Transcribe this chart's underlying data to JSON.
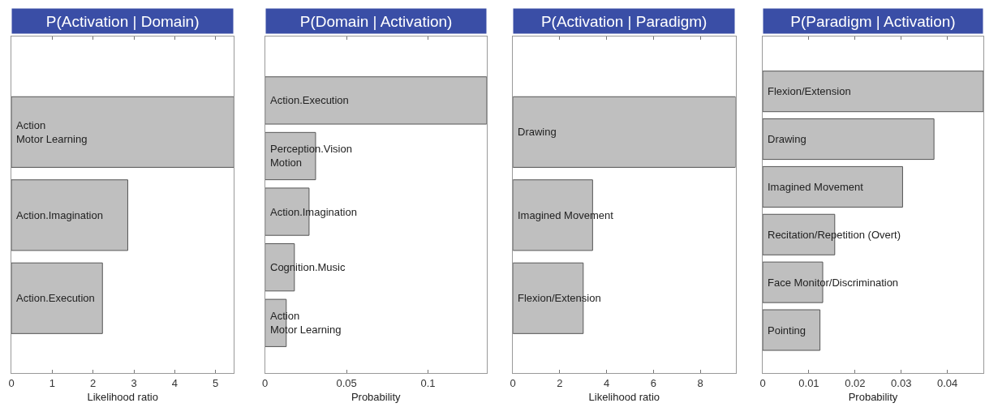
{
  "chart_data": [
    {
      "type": "bar",
      "orientation": "horizontal",
      "title": "P(Activation | Domain)",
      "xlabel": "Likelihood ratio",
      "categories": [
        "Action\nMotor Learning",
        "Action.Imagination",
        "Action.Execution"
      ],
      "values": [
        5.45,
        2.85,
        2.23
      ],
      "color": "#bfbfbf",
      "xlim": [
        0,
        5.45
      ],
      "xticks": [
        0,
        1,
        2,
        3,
        4,
        5
      ],
      "tick_labels": "x"
    },
    {
      "type": "bar",
      "orientation": "horizontal",
      "title": "P(Domain | Activation)",
      "xlabel": "Probability",
      "categories": [
        "Action.Execution",
        "Perception.Vision\nMotion",
        "Action.Imagination",
        "Cognition.Music",
        "Action\nMotor Learning"
      ],
      "values": [
        0.136,
        0.031,
        0.027,
        0.018,
        0.013
      ],
      "color": "#bfbfbf",
      "xlim": [
        0,
        0.136
      ],
      "xticks": [
        0,
        0.05,
        0.1
      ],
      "tick_labels": "x"
    },
    {
      "type": "bar",
      "orientation": "horizontal",
      "title": "P(Activation | Paradigm)",
      "xlabel": "Likelihood ratio",
      "categories": [
        "Drawing",
        "Imagined Movement",
        "Flexion/Extension"
      ],
      "values": [
        9.5,
        3.4,
        3.0
      ],
      "color": "#bfbfbf",
      "xlim": [
        0,
        9.5
      ],
      "xticks": [
        0,
        2,
        4,
        6,
        8
      ],
      "tick_labels": "x"
    },
    {
      "type": "bar",
      "orientation": "horizontal",
      "title": "P(Paradigm | Activation)",
      "xlabel": "Probability",
      "categories": [
        "Flexion/Extension",
        "Drawing",
        "Imagined Movement",
        "Recitation/Repetition (Overt)",
        "Face Monitor/Discrimination",
        "Pointing"
      ],
      "values": [
        0.0478,
        0.0371,
        0.0303,
        0.0156,
        0.013,
        0.0124
      ],
      "color": "#bfbfbf",
      "xlim": [
        0,
        0.0478
      ],
      "xticks": [
        0,
        0.01,
        0.02,
        0.03,
        0.04
      ],
      "tick_labels": "x"
    }
  ]
}
